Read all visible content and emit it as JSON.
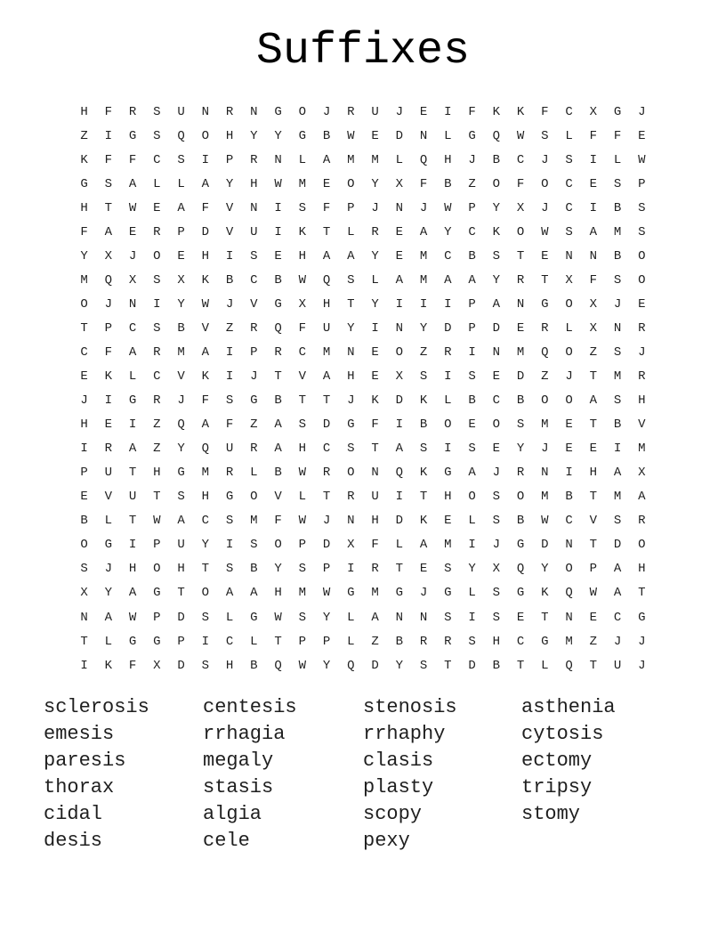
{
  "title": "Suffixes",
  "colors": {
    "background": "#ffffff",
    "text": "#1f1f1f",
    "title": "#000000"
  },
  "grid": {
    "rows_count": 24,
    "cols_count": 24,
    "rows": [
      "HFRSUNRNGOJRUJEIFKKFCXGJ",
      "ZIGSQOHYYGBWEDNLGQWSLFFE",
      "KFFCSIPRNLAMMLQHJBCJSILW",
      "GSALLAYHWMEOYXFBZOFOCESP",
      "HTWEAFVNISFPJNJWPYXJCIBS",
      "FAERPDVUIKTLREAYCKOWSAMS",
      "YXJOEHISEHAAYEMCBSTENNBO",
      "MQXSXKBCBWQSLAMAAYRTXFSO",
      "OJNIYWJVGXHTYIIIPANGOXJE",
      "TPCSBVZRQFUYINYDPDERLXNR",
      "CFARMAIPRCMNEOZRINMQOZSJ",
      "EKLCVKIJTVAHEXSISEDZJTMR",
      "JIGRJFSGBTTJKDKLBCBOOASH",
      "HEIZQAFZASDGFIBOEOSMETBV",
      "IRAZYQURAHCSTASISEYJEEIM",
      "PUTHGMRLBWRONQKGAJRNIHAX",
      "EVUTSHGOVLTRUITHOSOMBTMA",
      "BLTWACSMFWJNHDKELSBWCVSR",
      "OGIPUYISOPDXFLAMIJGDNTDO",
      "SJHOHTSBYSPIRTESYXQYOPAH",
      "XYAGTOAAHMWGMGJGLSGKQWAT",
      "NAWPDSLGWSYLANNSISETNECG",
      "TLGGPICLTPPLZBRRSHCGMZJJ",
      "IKFXDSHBQWYQDYSTDBTLQTUJ"
    ]
  },
  "words": {
    "columns": [
      [
        "sclerosis",
        "emesis",
        "paresis",
        "thorax",
        "cidal",
        "desis"
      ],
      [
        "centesis",
        "rrhagia",
        "megaly",
        "stasis",
        "algia",
        "cele"
      ],
      [
        "stenosis",
        "rrhaphy",
        "clasis",
        "plasty",
        "scopy",
        "pexy"
      ],
      [
        "asthenia",
        "cytosis",
        "ectomy",
        "tripsy",
        "stomy"
      ]
    ]
  }
}
